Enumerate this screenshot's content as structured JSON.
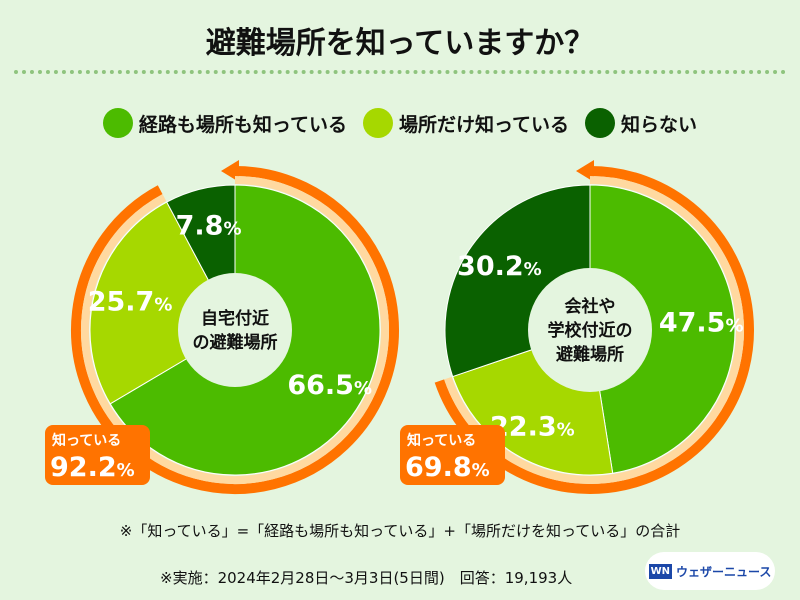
{
  "title": "避難場所を知っていますか？",
  "colors": {
    "both": "#4cbb00",
    "place_only": "#a6d800",
    "unknown": "#0a6100",
    "known": "#ff7300",
    "ring": "#ffd9a0"
  },
  "legend": [
    "経路も場所も知っている",
    "場所だけ知っている",
    "知らない"
  ],
  "chart_data": [
    {
      "type": "pie",
      "title": "自宅付近の避難場所",
      "center_lines": [
        "自宅付近",
        "の避難場所"
      ],
      "categories": [
        "経路も場所も知っている",
        "場所だけ知っている",
        "知らない"
      ],
      "values": [
        66.5,
        25.7,
        7.8
      ],
      "known_label": "知っている",
      "known_value": 92.2
    },
    {
      "type": "pie",
      "title": "会社や学校付近の避難場所",
      "center_lines": [
        "会社や",
        "学校付近の",
        "避難場所"
      ],
      "categories": [
        "経路も場所も知っている",
        "場所だけ知っている",
        "知らない"
      ],
      "values": [
        47.5,
        22.3,
        30.2
      ],
      "known_label": "知っている",
      "known_value": 69.8
    }
  ],
  "note": "※「知っている」=「経路も場所も知っている」+「場所だけを知っている」の合計",
  "period": "※実施：2024年2月28日〜3月3日(5日間)　回答：19,193人",
  "logo": {
    "mark": "WN",
    "text": "ウェザーニュース"
  }
}
